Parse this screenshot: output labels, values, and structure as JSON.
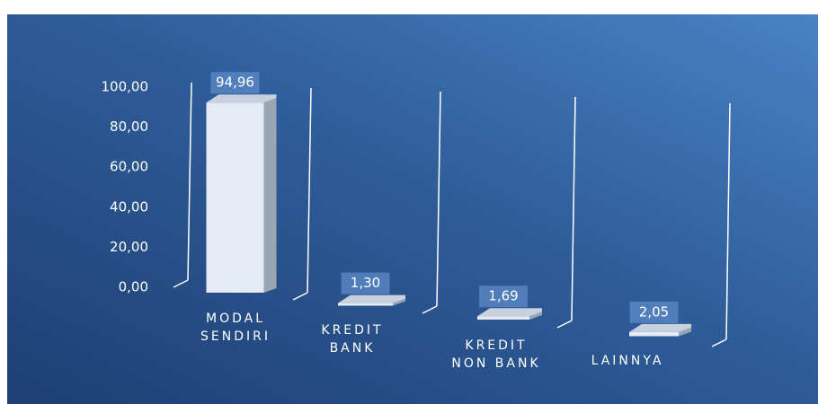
{
  "chart_data": {
    "type": "bar3d",
    "categories": [
      [
        "MODAL",
        "SENDIRI"
      ],
      [
        "KREDIT",
        "BANK"
      ],
      [
        "KREDIT",
        "NON BANK"
      ],
      [
        "LAINNYA"
      ]
    ],
    "values": [
      94.96,
      1.3,
      1.69,
      2.05
    ],
    "value_labels": [
      "94,96",
      "1,30",
      "1,69",
      "2,05"
    ],
    "color": "#e4ebf5",
    "ylim": [
      0,
      100
    ],
    "yticks": [
      {
        "value": 0,
        "label": "0,00"
      },
      {
        "value": 20,
        "label": "20,00"
      },
      {
        "value": 40,
        "label": "40,00"
      },
      {
        "value": 60,
        "label": "60,00"
      },
      {
        "value": 80,
        "label": "80,00"
      },
      {
        "value": 100,
        "label": "100,00"
      }
    ]
  }
}
